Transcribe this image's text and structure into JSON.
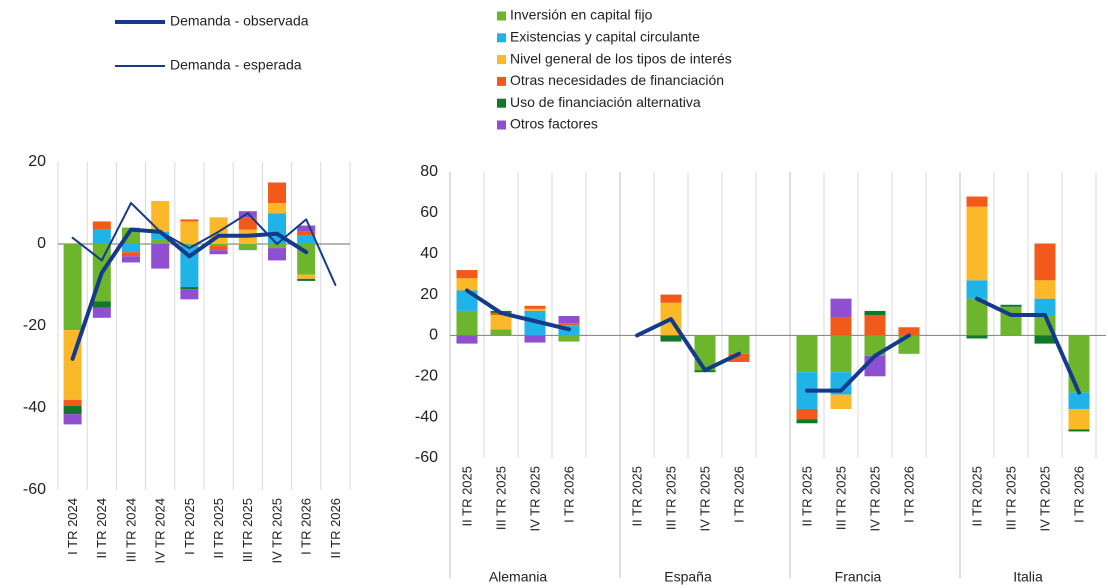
{
  "chart_data": [
    {
      "type": "bar",
      "categories": [
        "I TR 2024",
        "II TR 2024",
        "III TR 2024",
        "IV TR 2024",
        "I TR 2025",
        "II TR 2025",
        "III TR 2025",
        "IV TR 2025",
        "I TR 2026",
        "II TR 2026"
      ],
      "series": [
        {
          "name": "Inversión en capital fijo",
          "color": "#6cb52d",
          "values": [
            -21,
            -14,
            4,
            1,
            -0.5,
            -0.5,
            -1.5,
            -1,
            -7.5,
            null
          ]
        },
        {
          "name": "Existencias y capital circulante",
          "color": "#1fb3e8",
          "values": [
            0,
            3.5,
            -2,
            2,
            -10,
            0,
            0,
            7.5,
            2,
            null
          ]
        },
        {
          "name": "Nivel general de los tipos de interés",
          "color": "#fbb829",
          "values": [
            -17,
            0,
            0,
            7.5,
            5.5,
            6.5,
            3.5,
            2.5,
            -1,
            null
          ]
        },
        {
          "name": "Otras necesidades de financiación",
          "color": "#f25a1c",
          "values": [
            -1.5,
            2,
            -1,
            0,
            0.5,
            -1,
            3,
            5,
            1,
            null
          ]
        },
        {
          "name": "Uso de financiación alternativa",
          "color": "#10772b",
          "values": [
            -2,
            -1.5,
            0,
            0,
            -0.5,
            0,
            0,
            0,
            -0.5,
            null
          ]
        },
        {
          "name": "Otros factores",
          "color": "#8e4fd1",
          "values": [
            -2.5,
            -2.5,
            -1.5,
            -6,
            -2.5,
            -1,
            1.5,
            -3,
            1.5,
            null
          ]
        }
      ],
      "lines": [
        {
          "name": "Demanda - observada",
          "color": "#143a8c",
          "line_width": 4,
          "values": [
            -28,
            -7,
            3.5,
            3,
            -3,
            2,
            2,
            2.5,
            -2,
            null
          ]
        },
        {
          "name": "Demanda - esperada",
          "color": "#143a8c",
          "line_width": 2,
          "values": [
            1.5,
            -4,
            10,
            3,
            -1,
            3,
            7.5,
            0,
            6,
            -10
          ]
        }
      ],
      "ylim": [
        -60,
        20
      ],
      "yticks": [
        -60,
        -40,
        -20,
        0,
        20
      ]
    },
    {
      "type": "bar",
      "groups": [
        "Alemania",
        "España",
        "Francia",
        "Italia"
      ],
      "categories": [
        [
          "II TR 2025",
          "III TR 2025",
          "IV TR 2025",
          "I TR 2026"
        ],
        [
          "II TR 2025",
          "III TR 2025",
          "IV TR 2025",
          "I TR 2026"
        ],
        [
          "II TR 2025",
          "III TR 2025",
          "IV TR 2025",
          "I TR 2026"
        ],
        [
          "II TR 2025",
          "III TR 2025",
          "IV TR 2025",
          "I TR 2026"
        ]
      ],
      "series": [
        {
          "color": "#6cb52d",
          "values": [
            [
              12,
              3,
              0,
              -3
            ],
            [
              null,
              0,
              -17,
              -9
            ],
            [
              -18,
              -18,
              -10,
              -9
            ],
            [
              18,
              14,
              10,
              -28
            ]
          ]
        },
        {
          "color": "#1fb3e8",
          "values": [
            [
              10,
              0,
              12,
              5
            ],
            [
              null,
              0,
              0,
              0
            ],
            [
              -18,
              -11,
              0,
              0
            ],
            [
              9,
              0,
              8,
              -8
            ]
          ]
        },
        {
          "color": "#fbb829",
          "values": [
            [
              6,
              7,
              1,
              0
            ],
            [
              null,
              16,
              0,
              0
            ],
            [
              0,
              -7,
              0,
              0
            ],
            [
              36,
              0,
              9,
              -10
            ]
          ]
        },
        {
          "color": "#f25a1c",
          "values": [
            [
              4,
              1,
              1.5,
              1
            ],
            [
              null,
              4,
              0,
              -4
            ],
            [
              -5,
              9,
              10,
              4
            ],
            [
              5,
              0,
              18,
              0
            ]
          ]
        },
        {
          "color": "#10772b",
          "values": [
            [
              0,
              1,
              0,
              0
            ],
            [
              null,
              -3,
              -1,
              0
            ],
            [
              -2,
              0,
              2,
              0
            ],
            [
              -1.5,
              1,
              -4,
              -1
            ]
          ]
        },
        {
          "color": "#8e4fd1",
          "values": [
            [
              -4,
              0,
              -3.5,
              3.5
            ],
            [
              null,
              0,
              0,
              0
            ],
            [
              0,
              9,
              -10,
              0
            ],
            [
              0,
              0,
              0,
              0
            ]
          ]
        }
      ],
      "lines": [
        {
          "color": "#143a8c",
          "line_width": 4,
          "values": [
            [
              22,
              11,
              7,
              3
            ],
            [
              0,
              8,
              -17,
              -9
            ],
            [
              -27,
              -27,
              -10,
              0
            ],
            [
              18,
              10,
              10,
              -28
            ]
          ]
        }
      ],
      "ylim": [
        -60,
        80
      ],
      "yticks": [
        -60,
        -40,
        -20,
        0,
        20,
        40,
        60,
        80
      ]
    }
  ]
}
